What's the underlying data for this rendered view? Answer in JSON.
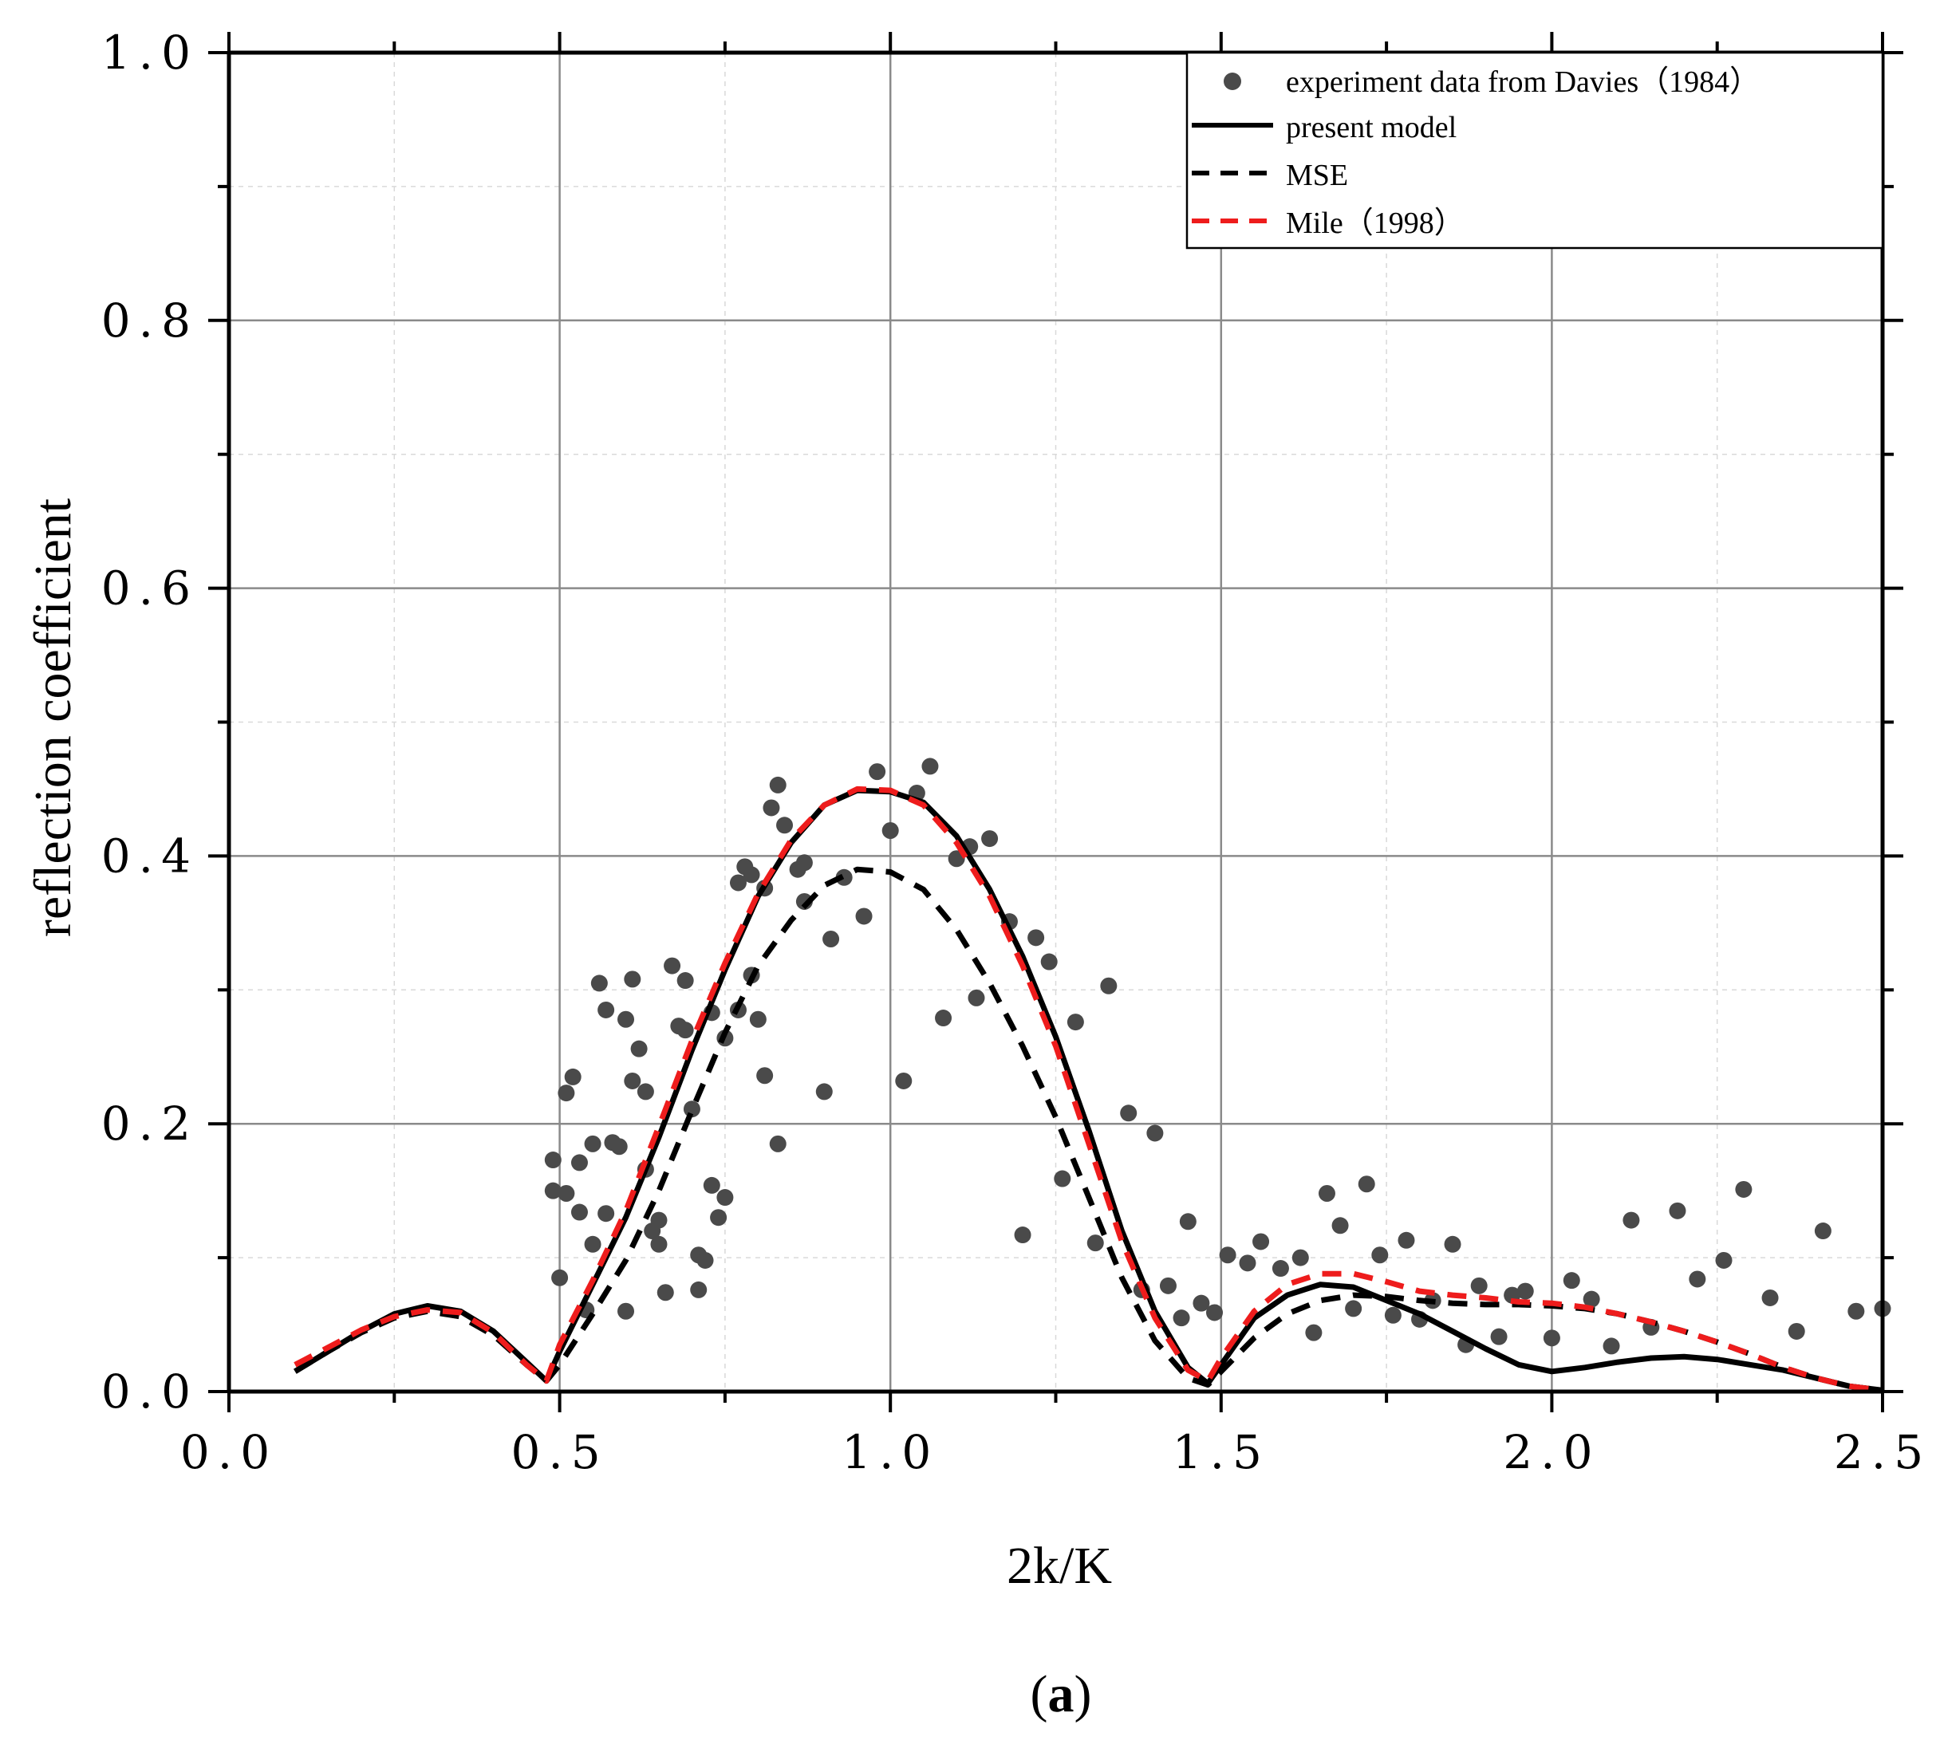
{
  "caption_prefix": "(",
  "caption_letter": "a",
  "caption_suffix": ")",
  "chart_data": {
    "type": "line",
    "title": "",
    "xlabel": "2k/K",
    "ylabel": "reflection coefficient",
    "xlim": [
      0.0,
      2.5
    ],
    "ylim": [
      0.0,
      1.0
    ],
    "x_ticks": [
      0.0,
      0.5,
      1.0,
      1.5,
      2.0,
      2.5
    ],
    "x_tick_labels": [
      "0.0",
      "0.5",
      "1.0",
      "1.5",
      "2.0",
      "2.5"
    ],
    "y_ticks": [
      0.0,
      0.2,
      0.4,
      0.6,
      0.8,
      1.0
    ],
    "y_tick_labels": [
      "0.0",
      "0.2",
      "0.4",
      "0.6",
      "0.8",
      "1.0"
    ],
    "grid": true,
    "legend_position": "top-right",
    "colors": {
      "data": "#4a4a4a",
      "present": "#000000",
      "mse": "#000000",
      "mile": "#ee1c1c",
      "grid_major": "#8a8a8a",
      "grid_minor": "#d9d9d9"
    },
    "series": [
      {
        "name": "experiment data from Davies（1984）",
        "style": "scatter",
        "points": [
          [
            0.49,
            0.173
          ],
          [
            0.49,
            0.15
          ],
          [
            0.5,
            0.085
          ],
          [
            0.51,
            0.223
          ],
          [
            0.51,
            0.148
          ],
          [
            0.52,
            0.235
          ],
          [
            0.53,
            0.171
          ],
          [
            0.53,
            0.134
          ],
          [
            0.54,
            0.061
          ],
          [
            0.55,
            0.185
          ],
          [
            0.55,
            0.11
          ],
          [
            0.56,
            0.305
          ],
          [
            0.57,
            0.285
          ],
          [
            0.57,
            0.133
          ],
          [
            0.58,
            0.186
          ],
          [
            0.59,
            0.183
          ],
          [
            0.6,
            0.06
          ],
          [
            0.6,
            0.278
          ],
          [
            0.61,
            0.308
          ],
          [
            0.61,
            0.232
          ],
          [
            0.62,
            0.256
          ],
          [
            0.63,
            0.224
          ],
          [
            0.63,
            0.166
          ],
          [
            0.64,
            0.12
          ],
          [
            0.65,
            0.128
          ],
          [
            0.65,
            0.11
          ],
          [
            0.66,
            0.074
          ],
          [
            0.67,
            0.318
          ],
          [
            0.68,
            0.273
          ],
          [
            0.69,
            0.307
          ],
          [
            0.69,
            0.27
          ],
          [
            0.7,
            0.211
          ],
          [
            0.71,
            0.076
          ],
          [
            0.71,
            0.102
          ],
          [
            0.72,
            0.098
          ],
          [
            0.73,
            0.154
          ],
          [
            0.73,
            0.283
          ],
          [
            0.74,
            0.13
          ],
          [
            0.75,
            0.145
          ],
          [
            0.75,
            0.264
          ],
          [
            0.77,
            0.285
          ],
          [
            0.77,
            0.38
          ],
          [
            0.78,
            0.392
          ],
          [
            0.79,
            0.386
          ],
          [
            0.79,
            0.311
          ],
          [
            0.8,
            0.278
          ],
          [
            0.81,
            0.376
          ],
          [
            0.81,
            0.236
          ],
          [
            0.82,
            0.436
          ],
          [
            0.83,
            0.453
          ],
          [
            0.83,
            0.185
          ],
          [
            0.84,
            0.423
          ],
          [
            0.86,
            0.39
          ],
          [
            0.87,
            0.395
          ],
          [
            0.87,
            0.366
          ],
          [
            0.9,
            0.224
          ],
          [
            0.91,
            0.338
          ],
          [
            0.93,
            0.384
          ],
          [
            0.96,
            0.355
          ],
          [
            0.98,
            0.463
          ],
          [
            1.0,
            0.419
          ],
          [
            1.02,
            0.232
          ],
          [
            1.04,
            0.447
          ],
          [
            1.06,
            0.467
          ],
          [
            1.08,
            0.279
          ],
          [
            1.1,
            0.398
          ],
          [
            1.12,
            0.407
          ],
          [
            1.13,
            0.294
          ],
          [
            1.15,
            0.413
          ],
          [
            1.18,
            0.351
          ],
          [
            1.2,
            0.117
          ],
          [
            1.22,
            0.339
          ],
          [
            1.24,
            0.321
          ],
          [
            1.26,
            0.159
          ],
          [
            1.28,
            0.276
          ],
          [
            1.31,
            0.111
          ],
          [
            1.33,
            0.303
          ],
          [
            1.36,
            0.208
          ],
          [
            1.38,
            0.076
          ],
          [
            1.4,
            0.193
          ],
          [
            1.42,
            0.079
          ],
          [
            1.44,
            0.055
          ],
          [
            1.45,
            0.127
          ],
          [
            1.47,
            0.066
          ],
          [
            1.49,
            0.059
          ],
          [
            1.51,
            0.102
          ],
          [
            1.54,
            0.096
          ],
          [
            1.56,
            0.112
          ],
          [
            1.59,
            0.092
          ],
          [
            1.62,
            0.1
          ],
          [
            1.64,
            0.044
          ],
          [
            1.66,
            0.148
          ],
          [
            1.68,
            0.124
          ],
          [
            1.7,
            0.062
          ],
          [
            1.72,
            0.155
          ],
          [
            1.74,
            0.102
          ],
          [
            1.76,
            0.057
          ],
          [
            1.78,
            0.113
          ],
          [
            1.8,
            0.054
          ],
          [
            1.82,
            0.068
          ],
          [
            1.85,
            0.11
          ],
          [
            1.87,
            0.035
          ],
          [
            1.89,
            0.079
          ],
          [
            1.92,
            0.041
          ],
          [
            1.94,
            0.072
          ],
          [
            1.96,
            0.075
          ],
          [
            2.0,
            0.04
          ],
          [
            2.03,
            0.083
          ],
          [
            2.06,
            0.069
          ],
          [
            2.09,
            0.034
          ],
          [
            2.12,
            0.128
          ],
          [
            2.15,
            0.048
          ],
          [
            2.19,
            0.135
          ],
          [
            2.22,
            0.084
          ],
          [
            2.26,
            0.098
          ],
          [
            2.29,
            0.151
          ],
          [
            2.33,
            0.07
          ],
          [
            2.37,
            0.045
          ],
          [
            2.41,
            0.12
          ],
          [
            2.46,
            0.06
          ],
          [
            2.5,
            0.062
          ]
        ]
      },
      {
        "name": "present model",
        "style": "solid",
        "x": [
          0.1,
          0.15,
          0.2,
          0.25,
          0.3,
          0.35,
          0.4,
          0.45,
          0.48,
          0.5,
          0.55,
          0.6,
          0.65,
          0.7,
          0.75,
          0.8,
          0.85,
          0.9,
          0.95,
          1.0,
          1.05,
          1.1,
          1.15,
          1.2,
          1.25,
          1.3,
          1.35,
          1.4,
          1.45,
          1.48,
          1.5,
          1.55,
          1.6,
          1.65,
          1.7,
          1.75,
          1.8,
          1.85,
          1.9,
          1.95,
          2.0,
          2.05,
          2.1,
          2.15,
          2.2,
          2.25,
          2.3,
          2.35,
          2.4,
          2.45,
          2.5
        ],
        "y": [
          0.015,
          0.03,
          0.045,
          0.058,
          0.064,
          0.06,
          0.045,
          0.022,
          0.008,
          0.03,
          0.08,
          0.13,
          0.19,
          0.255,
          0.315,
          0.37,
          0.41,
          0.438,
          0.449,
          0.448,
          0.44,
          0.415,
          0.375,
          0.325,
          0.265,
          0.195,
          0.12,
          0.06,
          0.018,
          0.006,
          0.02,
          0.055,
          0.072,
          0.08,
          0.078,
          0.068,
          0.058,
          0.045,
          0.032,
          0.02,
          0.015,
          0.018,
          0.022,
          0.025,
          0.026,
          0.024,
          0.02,
          0.016,
          0.01,
          0.004,
          0.001
        ]
      },
      {
        "name": "MSE",
        "style": "dashed",
        "x": [
          0.1,
          0.15,
          0.2,
          0.25,
          0.3,
          0.35,
          0.4,
          0.45,
          0.48,
          0.5,
          0.55,
          0.6,
          0.65,
          0.7,
          0.75,
          0.8,
          0.85,
          0.9,
          0.95,
          1.0,
          1.05,
          1.1,
          1.15,
          1.2,
          1.25,
          1.3,
          1.35,
          1.4,
          1.45,
          1.48,
          1.5,
          1.55,
          1.6,
          1.65,
          1.7,
          1.75,
          1.8,
          1.85,
          1.9,
          1.95,
          2.0,
          2.05,
          2.1,
          2.15,
          2.2,
          2.25,
          2.3,
          2.35,
          2.4,
          2.45,
          2.5
        ],
        "y": [
          0.015,
          0.03,
          0.044,
          0.055,
          0.06,
          0.056,
          0.042,
          0.02,
          0.008,
          0.02,
          0.058,
          0.098,
          0.15,
          0.21,
          0.268,
          0.318,
          0.352,
          0.378,
          0.39,
          0.388,
          0.375,
          0.345,
          0.305,
          0.258,
          0.205,
          0.145,
          0.085,
          0.038,
          0.01,
          0.005,
          0.015,
          0.04,
          0.058,
          0.068,
          0.072,
          0.071,
          0.068,
          0.066,
          0.065,
          0.065,
          0.064,
          0.062,
          0.058,
          0.052,
          0.045,
          0.037,
          0.028,
          0.018,
          0.01,
          0.004,
          0.001
        ]
      },
      {
        "name": "Mile（1998）",
        "style": "dashed",
        "x": [
          0.1,
          0.15,
          0.2,
          0.25,
          0.3,
          0.35,
          0.4,
          0.45,
          0.48,
          0.5,
          0.55,
          0.6,
          0.65,
          0.7,
          0.75,
          0.8,
          0.85,
          0.9,
          0.95,
          1.0,
          1.05,
          1.1,
          1.15,
          1.2,
          1.25,
          1.3,
          1.35,
          1.4,
          1.45,
          1.48,
          1.5,
          1.55,
          1.6,
          1.65,
          1.7,
          1.75,
          1.8,
          1.85,
          1.9,
          1.95,
          2.0,
          2.05,
          2.1,
          2.15,
          2.2,
          2.25,
          2.3,
          2.35,
          2.4,
          2.45,
          2.5
        ],
        "y": [
          0.02,
          0.033,
          0.046,
          0.056,
          0.061,
          0.059,
          0.044,
          0.02,
          0.008,
          0.035,
          0.083,
          0.135,
          0.198,
          0.262,
          0.32,
          0.372,
          0.412,
          0.438,
          0.45,
          0.449,
          0.438,
          0.41,
          0.37,
          0.318,
          0.258,
          0.185,
          0.112,
          0.055,
          0.016,
          0.008,
          0.025,
          0.06,
          0.08,
          0.088,
          0.088,
          0.082,
          0.075,
          0.072,
          0.07,
          0.067,
          0.066,
          0.063,
          0.058,
          0.052,
          0.045,
          0.037,
          0.028,
          0.018,
          0.01,
          0.004,
          0.001
        ]
      }
    ]
  }
}
